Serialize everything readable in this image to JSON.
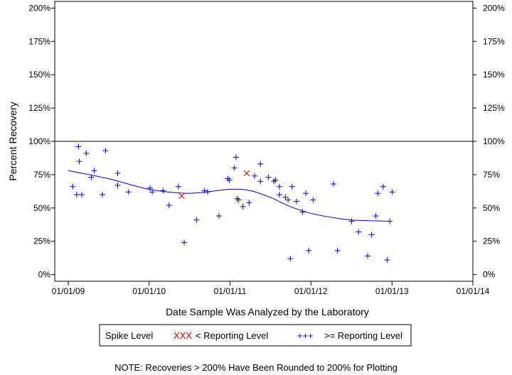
{
  "chart_data": {
    "type": "scatter",
    "title": "",
    "xlabel": "Date Sample Was Analyzed by the Laboratory",
    "ylabel": "Percent Recovery",
    "x_ticks": [
      "01/01/09",
      "01/01/10",
      "01/01/11",
      "01/01/12",
      "01/01/13",
      "01/01/14"
    ],
    "x_range": [
      "2008-11-01",
      "2014-01-01"
    ],
    "y_ticks": [
      "0%",
      "25%",
      "50%",
      "75%",
      "100%",
      "125%",
      "150%",
      "175%",
      "200%"
    ],
    "y_tick_values": [
      0,
      25,
      50,
      75,
      100,
      125,
      150,
      175,
      200
    ],
    "ylim": [
      -5,
      205
    ],
    "reference_line": 100,
    "grid": false,
    "legend_position": "bottom",
    "legend": {
      "title": "Spike Level",
      "below_marker": "XXX",
      "below_label": "< Reporting Level",
      "above_marker": "+++",
      "above_label": ">= Reporting Level"
    },
    "note": "NOTE: Recoveries > 200% Have Been Rounded to 200% for Plotting",
    "colors": {
      "above": "#0000cc",
      "below": "#cc0000",
      "trend": "#0000cc",
      "axis": "#000000"
    },
    "series": [
      {
        "marker": "plus",
        "points": [
          [
            "2009-01-21",
            66
          ],
          [
            "2009-02-16",
            96
          ],
          [
            "2009-02-20",
            85
          ],
          [
            "2009-02-08",
            60
          ],
          [
            "2009-03-03",
            60
          ],
          [
            "2009-03-23",
            91
          ],
          [
            "2009-04-28",
            78
          ],
          [
            "2009-04-15",
            73
          ],
          [
            "2009-06-04",
            60
          ],
          [
            "2009-06-18",
            93
          ],
          [
            "2009-08-12",
            76
          ],
          [
            "2009-08-12",
            67
          ],
          [
            "2009-09-30",
            62
          ],
          [
            "2010-01-05",
            65
          ],
          [
            "2010-01-15",
            62
          ],
          [
            "2010-03-05",
            63
          ],
          [
            "2010-04-01",
            52
          ],
          [
            "2010-05-13",
            66
          ],
          [
            "2010-06-08",
            24
          ],
          [
            "2010-08-03",
            41
          ],
          [
            "2010-09-08",
            63
          ],
          [
            "2010-09-22",
            62
          ],
          [
            "2010-11-12",
            44
          ],
          [
            "2010-12-22",
            72
          ],
          [
            "2010-12-29",
            71
          ],
          [
            "2011-01-20",
            80
          ],
          [
            "2011-01-28",
            88
          ],
          [
            "2011-02-02",
            57
          ],
          [
            "2011-02-09",
            56
          ],
          [
            "2011-02-28",
            51
          ],
          [
            "2011-03-28",
            54
          ],
          [
            "2011-04-22",
            74
          ],
          [
            "2011-05-18",
            70
          ],
          [
            "2011-05-18",
            83
          ],
          [
            "2011-06-23",
            73
          ],
          [
            "2011-07-18",
            70
          ],
          [
            "2011-07-25",
            71
          ],
          [
            "2011-08-12",
            66
          ],
          [
            "2011-08-12",
            60
          ],
          [
            "2011-09-08",
            58
          ],
          [
            "2011-09-20",
            56
          ],
          [
            "2011-09-30",
            12
          ],
          [
            "2011-10-08",
            66
          ],
          [
            "2011-10-28",
            55
          ],
          [
            "2011-11-24",
            47
          ],
          [
            "2011-12-09",
            61
          ],
          [
            "2011-12-22",
            18
          ],
          [
            "2012-01-11",
            56
          ],
          [
            "2012-04-12",
            68
          ],
          [
            "2012-04-30",
            18
          ],
          [
            "2012-07-03",
            40
          ],
          [
            "2012-08-03",
            32
          ],
          [
            "2012-09-13",
            14
          ],
          [
            "2012-10-01",
            30
          ],
          [
            "2012-10-29",
            61
          ],
          [
            "2012-10-20",
            44
          ],
          [
            "2012-11-22",
            66
          ],
          [
            "2012-12-10",
            11
          ],
          [
            "2012-12-22",
            40
          ],
          [
            "2013-01-02",
            62
          ]
        ]
      },
      {
        "marker": "x",
        "points": [
          [
            "2010-05-28",
            59
          ],
          [
            "2011-03-17",
            76
          ]
        ]
      }
    ],
    "trend": [
      [
        "2009-01-01",
        78
      ],
      [
        "2009-07-01",
        72
      ],
      [
        "2010-01-01",
        64
      ],
      [
        "2010-07-01",
        61
      ],
      [
        "2011-01-01",
        64
      ],
      [
        "2011-04-01",
        63
      ],
      [
        "2011-07-01",
        58
      ],
      [
        "2011-10-01",
        51
      ],
      [
        "2012-01-01",
        46
      ],
      [
        "2012-04-01",
        43
      ],
      [
        "2012-07-01",
        41
      ],
      [
        "2012-12-31",
        40
      ]
    ]
  }
}
